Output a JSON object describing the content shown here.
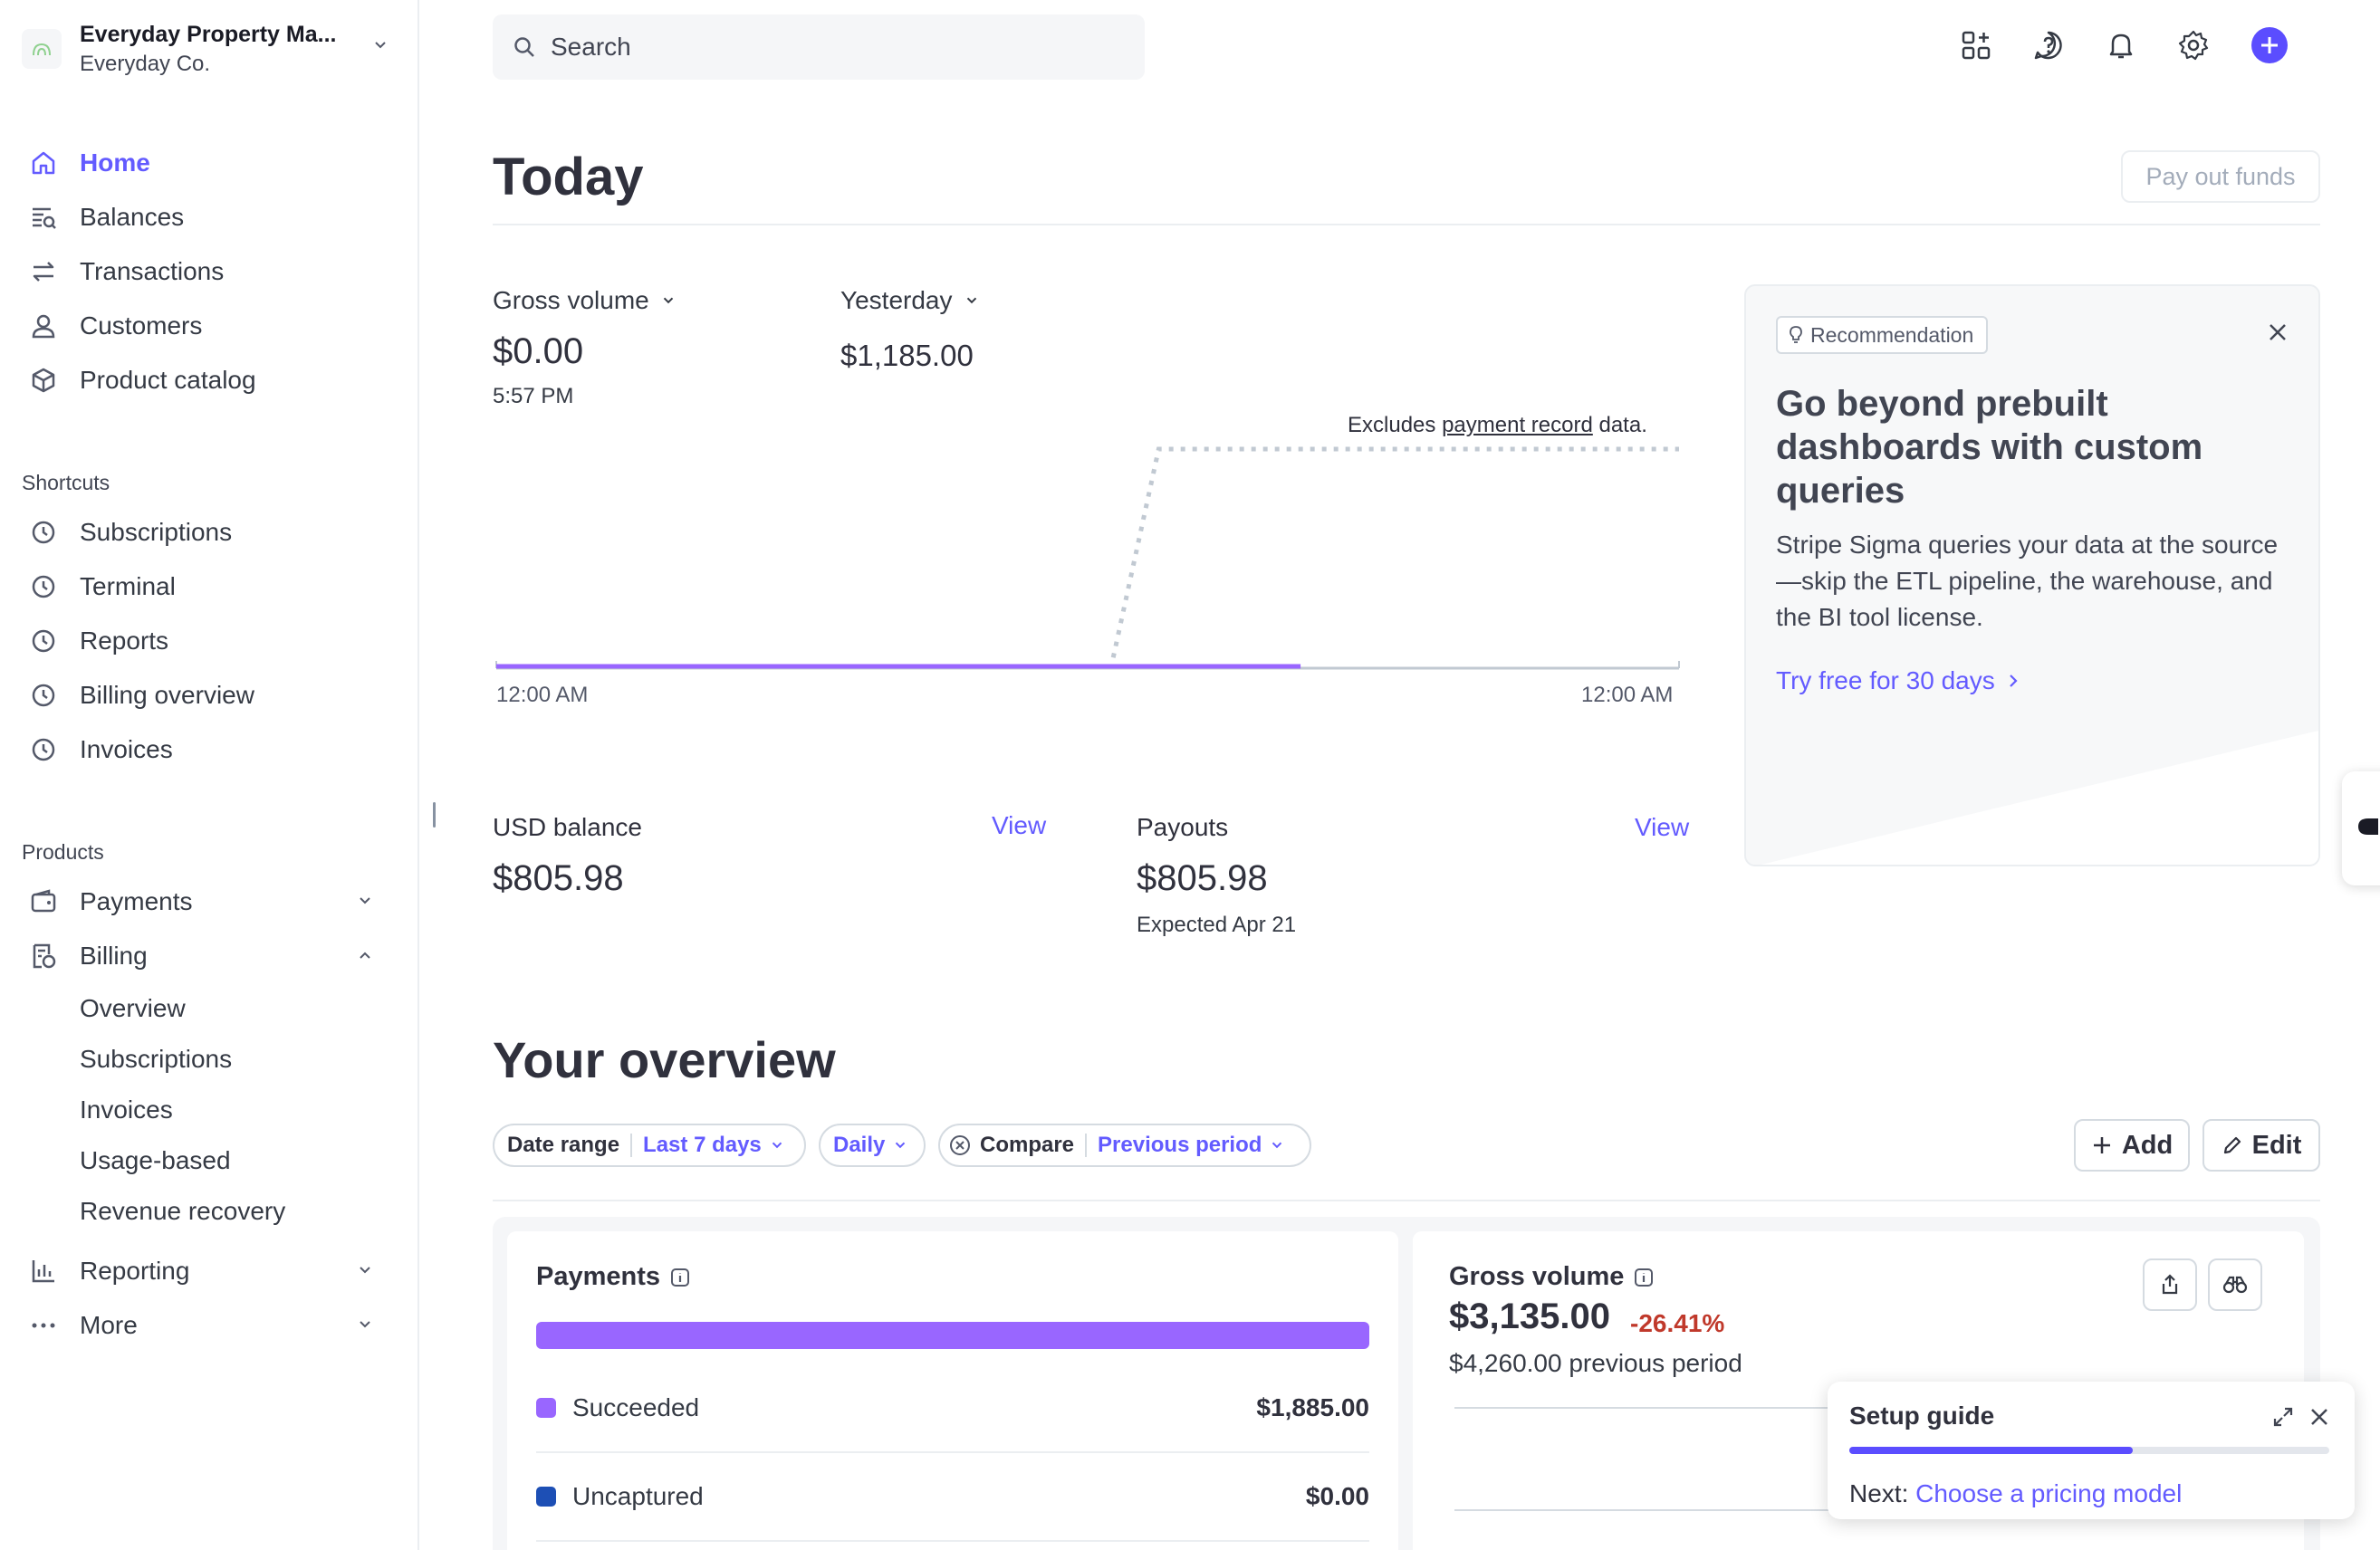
{
  "account": {
    "name": "Everyday Property Ma...",
    "company": "Everyday Co."
  },
  "search": {
    "placeholder": "Search"
  },
  "nav": {
    "main": [
      {
        "label": "Home",
        "icon": "home-icon"
      },
      {
        "label": "Balances",
        "icon": "balances-icon"
      },
      {
        "label": "Transactions",
        "icon": "transactions-icon"
      },
      {
        "label": "Customers",
        "icon": "customers-icon"
      },
      {
        "label": "Product catalog",
        "icon": "product-catalog-icon"
      }
    ],
    "shortcuts_label": "Shortcuts",
    "shortcuts": [
      "Subscriptions",
      "Terminal",
      "Reports",
      "Billing overview",
      "Invoices"
    ],
    "products_label": "Products",
    "products": {
      "payments": "Payments",
      "billing": "Billing",
      "billing_sub": [
        "Overview",
        "Subscriptions",
        "Invoices",
        "Usage-based",
        "Revenue recovery"
      ],
      "reporting": "Reporting",
      "more": "More"
    }
  },
  "today": {
    "title": "Today",
    "payout_button": "Pay out funds",
    "gross_volume_label": "Gross volume",
    "gross_volume_value": "$0.00",
    "gross_volume_time": "5:57 PM",
    "yesterday_label": "Yesterday",
    "yesterday_value": "$1,185.00",
    "excludes_prefix": "Excludes",
    "excludes_link": "payment record",
    "excludes_suffix": "data.",
    "axis_start": "12:00 AM",
    "axis_end": "12:00 AM"
  },
  "chart_data": {
    "type": "line",
    "series": [
      {
        "name": "Gross volume",
        "values": [
          0,
          0,
          0,
          0,
          0,
          0,
          0,
          0,
          0,
          0,
          0,
          0,
          0,
          0,
          0,
          0,
          0,
          0
        ],
        "color": "#9966ff"
      },
      {
        "name": "Yesterday",
        "values": [
          0,
          0,
          0,
          0,
          0,
          0,
          0,
          0,
          0,
          0,
          0,
          0,
          0,
          0,
          1185,
          1185,
          1185,
          1185,
          1185,
          1185,
          1185,
          1185,
          1185,
          1185,
          1185,
          1185
        ],
        "color": "#c1c9d2"
      }
    ],
    "x_range": [
      "12:00 AM",
      "12:00 AM"
    ]
  },
  "recommendation": {
    "badge": "Recommendation",
    "title": "Go beyond prebuilt dashboards with custom queries",
    "body": "Stripe Sigma queries your data at the source—skip the ETL pipeline, the warehouse, and the BI tool license.",
    "cta": "Try free for 30 days"
  },
  "balances": {
    "usd_label": "USD balance",
    "usd_view": "View",
    "usd_value": "$805.98",
    "payouts_label": "Payouts",
    "payouts_view": "View",
    "payouts_value": "$805.98",
    "payouts_expected": "Expected Apr 21"
  },
  "overview": {
    "title": "Your overview",
    "date_range_label": "Date range",
    "date_range_value": "Last 7 days",
    "interval": "Daily",
    "compare_label": "Compare",
    "compare_value": "Previous period",
    "add_button": "Add",
    "edit_button": "Edit"
  },
  "payments_card": {
    "title": "Payments",
    "rows": [
      {
        "label": "Succeeded",
        "value": "$1,885.00",
        "color": "#9966ff"
      },
      {
        "label": "Uncaptured",
        "value": "$0.00",
        "color": "#1d4fb5"
      }
    ]
  },
  "gross_volume_card": {
    "title": "Gross volume",
    "value": "$3,135.00",
    "change": "-26.41%",
    "previous": "$4,260.00 previous period"
  },
  "setup_guide": {
    "title": "Setup guide",
    "progress": 0.59,
    "next_prefix": "Next:",
    "next_link": "Choose a pricing model"
  },
  "colors": {
    "accent": "#635bff",
    "negative": "#c0392b"
  }
}
